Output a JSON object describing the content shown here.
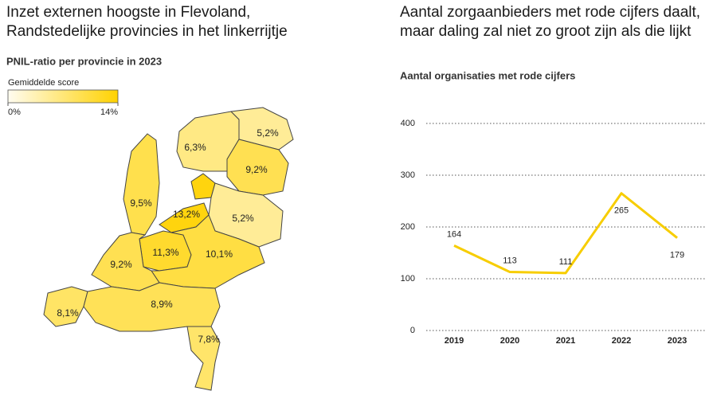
{
  "chart_data": [
    {
      "type": "choropleth",
      "title": [
        "Inzet externen hoogste in Flevoland,",
        "Randstedelijke provincies in het linkerrijtje"
      ],
      "subtitle": "PNIL-ratio per provincie in 2023",
      "legend_title": "Gemiddelde score",
      "legend_ticks": [
        {
          "value": 0,
          "label": "0%"
        },
        {
          "value": 14,
          "label": "14%"
        }
      ],
      "color_range": [
        "#fffcf0",
        "#ffd200"
      ],
      "values": [
        6.3,
        5.2,
        9.2,
        9.5,
        13.2,
        5.2,
        11.3,
        10.1,
        9.2,
        8.1,
        8.9,
        7.8
      ],
      "value_labels": [
        "6,3%",
        "5,2%",
        "9,2%",
        "9,5%",
        "13,2%",
        "5,2%",
        "11,3%",
        "10,1%",
        "9,2%",
        "8,1%",
        "8,9%",
        "7,8%"
      ]
    },
    {
      "type": "line",
      "title": [
        "Aantal zorgaanbieders met rode cijfers daalt,",
        "maar daling zal niet zo groot zijn als die lijkt"
      ],
      "subtitle": "Aantal organisaties met rode cijfers",
      "categories": [
        "2019",
        "2020",
        "2021",
        "2022",
        "2023"
      ],
      "values": [
        164,
        113,
        111,
        265,
        179
      ],
      "color": "#f7cd00",
      "ylim": [
        0,
        400
      ],
      "yticks": [
        0,
        100,
        200,
        300,
        400
      ],
      "grid": true
    }
  ]
}
